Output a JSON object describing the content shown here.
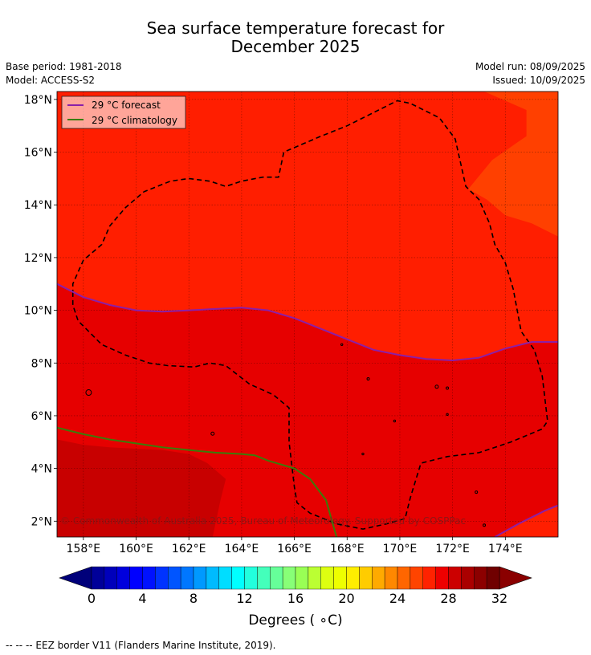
{
  "title_line1": "Sea surface temperature forecast for",
  "title_line2": "December 2025",
  "meta": {
    "base_period": "Base period: 1981-2018",
    "model": "Model: ACCESS-S2",
    "model_run": "Model run: 08/09/2025",
    "issued": "Issued: 10/09/2025"
  },
  "legend": {
    "forecast_label": "29 °C  forecast",
    "forecast_color": "#8b1fa8",
    "climatology_label": "29 °C  climatology",
    "climatology_color": "#3a7d0a"
  },
  "copyright": "© Commonwealth of Australia 2025, Bureau of Meteorology. Supported by COSPPac",
  "map": {
    "lon_range": [
      157,
      176
    ],
    "lat_range": [
      1.4,
      18.3
    ],
    "lon_ticks": [
      158,
      160,
      162,
      164,
      166,
      168,
      170,
      172,
      174
    ],
    "lon_tick_labels": [
      "158°E",
      "160°E",
      "162°E",
      "164°E",
      "166°E",
      "168°E",
      "170°E",
      "172°E",
      "174°E"
    ],
    "lat_ticks": [
      2,
      4,
      6,
      8,
      10,
      12,
      14,
      16,
      18
    ],
    "lat_tick_labels": [
      "2°N",
      "4°N",
      "6°N",
      "8°N",
      "10°N",
      "12°N",
      "14°N",
      "16°N",
      "18°N"
    ],
    "colors": {
      "band_27_28": "#ff4000",
      "band_28_29": "#ff1e00",
      "band_29_30": "#e60000",
      "band_30_31": "#c80000"
    },
    "forecast_29_isoline": [
      [
        157,
        11.0
      ],
      [
        158,
        10.5
      ],
      [
        159,
        10.2
      ],
      [
        160,
        10.0
      ],
      [
        161,
        9.95
      ],
      [
        162,
        10.0
      ],
      [
        163,
        10.05
      ],
      [
        164,
        10.1
      ],
      [
        165,
        10.0
      ],
      [
        166,
        9.7
      ],
      [
        167,
        9.3
      ],
      [
        168,
        8.9
      ],
      [
        169,
        8.5
      ],
      [
        170,
        8.3
      ],
      [
        171,
        8.15
      ],
      [
        172,
        8.1
      ],
      [
        173,
        8.2
      ],
      [
        174,
        8.55
      ],
      [
        175,
        8.8
      ],
      [
        176,
        8.8
      ]
    ],
    "forecast_29_isoline_se": [
      [
        173.6,
        1.4
      ],
      [
        174.5,
        1.9
      ],
      [
        175.5,
        2.4
      ],
      [
        176,
        2.6
      ]
    ],
    "climatology_29_isoline": [
      [
        157,
        5.55
      ],
      [
        158,
        5.3
      ],
      [
        159,
        5.1
      ],
      [
        160,
        4.95
      ],
      [
        161,
        4.8
      ],
      [
        162,
        4.7
      ],
      [
        163,
        4.6
      ],
      [
        164,
        4.55
      ],
      [
        164.5,
        4.5
      ],
      [
        165,
        4.3
      ],
      [
        166,
        4.0
      ],
      [
        166.6,
        3.6
      ],
      [
        167.2,
        2.8
      ],
      [
        167.6,
        1.4
      ]
    ],
    "eez_border": [
      [
        157.6,
        10.6
      ],
      [
        157.6,
        11.0
      ],
      [
        158,
        11.9
      ],
      [
        158.7,
        12.5
      ],
      [
        159,
        13.2
      ],
      [
        159.6,
        13.9
      ],
      [
        160.3,
        14.5
      ],
      [
        161.3,
        14.9
      ],
      [
        162,
        15.0
      ],
      [
        162.8,
        14.9
      ],
      [
        163.4,
        14.7
      ],
      [
        164,
        14.9
      ],
      [
        164.8,
        15.05
      ],
      [
        165.4,
        15.05
      ],
      [
        165.6,
        16.0
      ],
      [
        167,
        16.6
      ],
      [
        168,
        17.0
      ],
      [
        169,
        17.5
      ],
      [
        169.9,
        17.95
      ],
      [
        170.4,
        17.85
      ],
      [
        171.5,
        17.3
      ],
      [
        172.1,
        16.5
      ],
      [
        172.5,
        14.7
      ],
      [
        173,
        14.2
      ],
      [
        173.4,
        13.3
      ],
      [
        173.6,
        12.5
      ],
      [
        174,
        11.8
      ],
      [
        174.3,
        10.8
      ],
      [
        174.6,
        9.2
      ],
      [
        175.1,
        8.5
      ],
      [
        175.4,
        7.5
      ],
      [
        175.6,
        5.8
      ],
      [
        175.4,
        5.5
      ],
      [
        174.2,
        5.0
      ],
      [
        173,
        4.6
      ],
      [
        171.8,
        4.45
      ],
      [
        170.8,
        4.2
      ],
      [
        170.4,
        2.9
      ],
      [
        170.2,
        2.1
      ],
      [
        169.5,
        1.9
      ],
      [
        168.6,
        1.7
      ],
      [
        167.6,
        1.9
      ],
      [
        166.6,
        2.3
      ],
      [
        166.1,
        2.7
      ],
      [
        166,
        3.3
      ],
      [
        165.8,
        5.0
      ],
      [
        165.8,
        6.3
      ],
      [
        165.2,
        6.8
      ],
      [
        164.3,
        7.2
      ],
      [
        163.4,
        7.9
      ],
      [
        162.8,
        8.0
      ],
      [
        162.2,
        7.85
      ],
      [
        161.2,
        7.9
      ],
      [
        160.5,
        8.0
      ],
      [
        159.6,
        8.3
      ],
      [
        158.7,
        8.7
      ],
      [
        158.2,
        9.2
      ],
      [
        157.8,
        9.6
      ],
      [
        157.6,
        10.2
      ]
    ],
    "coastlines": [
      {
        "lon": 158.2,
        "lat": 6.88,
        "r": 3.5
      },
      {
        "lon": 162.9,
        "lat": 5.32,
        "r": 2
      },
      {
        "lon": 167.8,
        "lat": 8.7,
        "r": 1.2
      },
      {
        "lon": 168.8,
        "lat": 7.4,
        "r": 1.5
      },
      {
        "lon": 169.8,
        "lat": 5.8,
        "r": 1.2
      },
      {
        "lon": 171.4,
        "lat": 7.1,
        "r": 2
      },
      {
        "lon": 171.8,
        "lat": 7.05,
        "r": 1.5
      },
      {
        "lon": 171.8,
        "lat": 6.05,
        "r": 1.2
      },
      {
        "lon": 168.6,
        "lat": 4.55,
        "r": 1.2
      },
      {
        "lon": 172.9,
        "lat": 3.1,
        "r": 1.5
      },
      {
        "lon": 173.2,
        "lat": 1.85,
        "r": 1.5
      },
      {
        "lon": 166.0,
        "lat": 4.0,
        "r": 1
      }
    ]
  },
  "colorbar": {
    "min": 0,
    "max": 32,
    "step": 1,
    "tick_values": [
      0,
      4,
      8,
      12,
      16,
      20,
      24,
      28,
      32
    ],
    "tick_labels": [
      "0",
      "4",
      "8",
      "12",
      "16",
      "20",
      "24",
      "28",
      "32"
    ],
    "label": "Degrees ( ∘C)",
    "under_color": "#00007a",
    "over_color": "#8a0000",
    "colors": [
      "#000099",
      "#0000bb",
      "#0000dd",
      "#0000ff",
      "#0011ff",
      "#0033ff",
      "#0055ff",
      "#0077ff",
      "#0099ff",
      "#00bbff",
      "#00ddff",
      "#00ffff",
      "#22ffdd",
      "#44ffbb",
      "#66ff99",
      "#88ff77",
      "#99ff55",
      "#bbff33",
      "#ddff11",
      "#eeff00",
      "#ffee00",
      "#ffcc00",
      "#ffaa00",
      "#ff8800",
      "#ff6600",
      "#ff4400",
      "#ff2200",
      "#ee0000",
      "#cc0000",
      "#aa0000",
      "#8c0000",
      "#700000"
    ]
  },
  "footer": "--  --  -- EEZ border V11 (Flanders Marine Institute, 2019)."
}
